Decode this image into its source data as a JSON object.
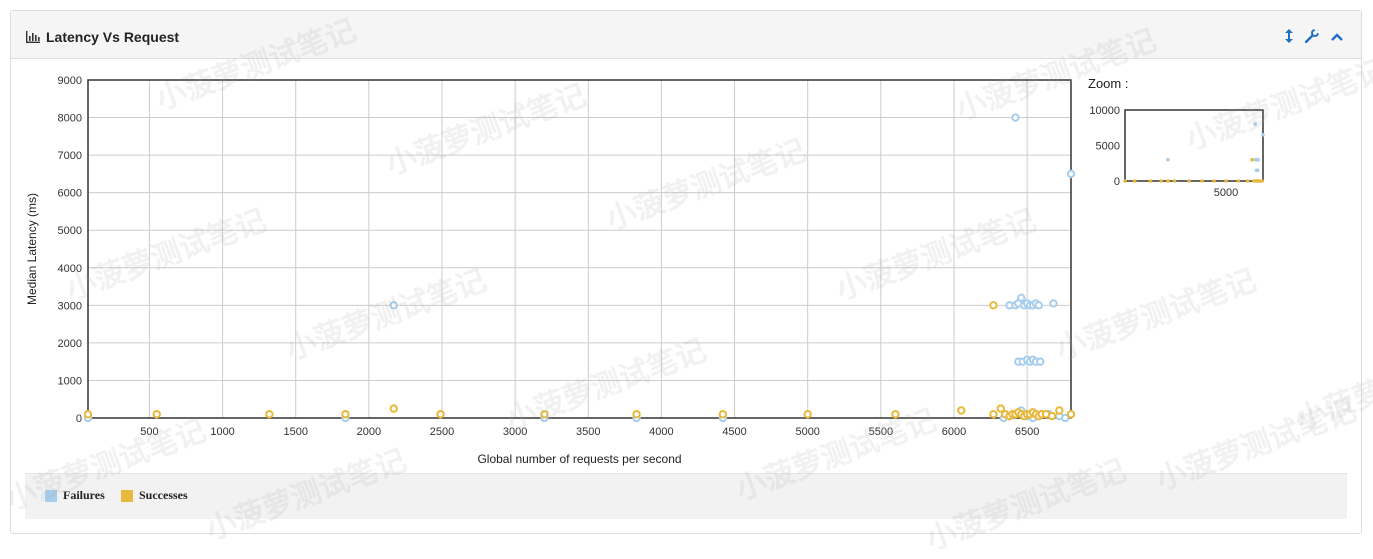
{
  "panel": {
    "title": "Latency Vs Request",
    "tools": {
      "expand_icon": "expand-vertical-icon",
      "settings_icon": "wrench-icon",
      "collapse_icon": "chevron-up-icon"
    }
  },
  "zoom": {
    "label": "Zoom :"
  },
  "legend": [
    {
      "name": "Failures",
      "color": "#a6cdec"
    },
    {
      "name": "Successes",
      "color": "#e8b83a"
    }
  ],
  "watermark": "小菠萝测试笔记",
  "colors": {
    "failures": "#a6cdec",
    "successes": "#e8b83a",
    "grid": "#cccccc",
    "axis": "#333333"
  },
  "chart_data": [
    {
      "type": "scatter",
      "title": "",
      "xlabel": "Global number of requests per second",
      "ylabel": "Median Latency (ms)",
      "xlim": [
        80,
        6800
      ],
      "ylim": [
        0,
        9000
      ],
      "xticks": [
        500,
        1000,
        1500,
        2000,
        2500,
        3000,
        3500,
        4000,
        4500,
        5000,
        5500,
        6000,
        6500
      ],
      "yticks": [
        0,
        1000,
        2000,
        3000,
        4000,
        5000,
        6000,
        7000,
        8000,
        9000
      ],
      "grid": true,
      "legend_position": "bottom-left",
      "series": [
        {
          "name": "Failures",
          "points": [
            [
              80,
              0
            ],
            [
              2170,
              3000
            ],
            [
              1840,
              0
            ],
            [
              3200,
              0
            ],
            [
              3830,
              0
            ],
            [
              4420,
              0
            ],
            [
              6420,
              8000
            ],
            [
              6800,
              6500
            ],
            [
              6380,
              3000
            ],
            [
              6420,
              3000
            ],
            [
              6440,
              3050
            ],
            [
              6460,
              3200
            ],
            [
              6480,
              3000
            ],
            [
              6500,
              3050
            ],
            [
              6520,
              3000
            ],
            [
              6540,
              3000
            ],
            [
              6560,
              3050
            ],
            [
              6580,
              3000
            ],
            [
              6680,
              3050
            ],
            [
              6440,
              1500
            ],
            [
              6470,
              1500
            ],
            [
              6500,
              1550
            ],
            [
              6520,
              1500
            ],
            [
              6540,
              1550
            ],
            [
              6560,
              1500
            ],
            [
              6590,
              1500
            ],
            [
              6340,
              0
            ],
            [
              6380,
              50
            ],
            [
              6420,
              100
            ],
            [
              6460,
              200
            ],
            [
              6500,
              50
            ],
            [
              6540,
              0
            ],
            [
              6580,
              50
            ],
            [
              6650,
              100
            ],
            [
              6720,
              50
            ],
            [
              6760,
              0
            ]
          ]
        },
        {
          "name": "Successes",
          "points": [
            [
              80,
              100
            ],
            [
              550,
              100
            ],
            [
              1320,
              100
            ],
            [
              1840,
              100
            ],
            [
              2170,
              250
            ],
            [
              2490,
              100
            ],
            [
              3200,
              100
            ],
            [
              3830,
              100
            ],
            [
              4420,
              100
            ],
            [
              5000,
              100
            ],
            [
              5600,
              100
            ],
            [
              6050,
              200
            ],
            [
              6270,
              100
            ],
            [
              6270,
              3000
            ],
            [
              6320,
              250
            ],
            [
              6350,
              100
            ],
            [
              6380,
              50
            ],
            [
              6400,
              100
            ],
            [
              6420,
              100
            ],
            [
              6440,
              150
            ],
            [
              6460,
              100
            ],
            [
              6480,
              50
            ],
            [
              6500,
              100
            ],
            [
              6520,
              100
            ],
            [
              6540,
              150
            ],
            [
              6560,
              100
            ],
            [
              6580,
              50
            ],
            [
              6600,
              100
            ],
            [
              6630,
              100
            ],
            [
              6670,
              50
            ],
            [
              6720,
              200
            ],
            [
              6800,
              100
            ]
          ]
        }
      ]
    },
    {
      "type": "scatter",
      "title": "Zoom :",
      "xlim": [
        80,
        6800
      ],
      "ylim": [
        0,
        10000
      ],
      "xticks": [
        5000
      ],
      "yticks": [
        0,
        5000,
        10000
      ],
      "grid": false,
      "series": [
        {
          "name": "Failures",
          "points": [
            [
              2170,
              3000
            ],
            [
              6420,
              8000
            ],
            [
              6800,
              6500
            ],
            [
              6440,
              3000
            ],
            [
              6500,
              3000
            ],
            [
              6560,
              3000
            ],
            [
              6480,
              1500
            ],
            [
              6540,
              1500
            ],
            [
              6500,
              0
            ],
            [
              6600,
              0
            ]
          ]
        },
        {
          "name": "Successes",
          "points": [
            [
              80,
              0
            ],
            [
              550,
              0
            ],
            [
              1320,
              0
            ],
            [
              1840,
              0
            ],
            [
              2170,
              0
            ],
            [
              2490,
              0
            ],
            [
              3200,
              0
            ],
            [
              3830,
              0
            ],
            [
              4420,
              0
            ],
            [
              5000,
              0
            ],
            [
              5600,
              0
            ],
            [
              6050,
              0
            ],
            [
              6270,
              3000
            ],
            [
              6350,
              0
            ],
            [
              6450,
              0
            ],
            [
              6550,
              0
            ],
            [
              6650,
              0
            ],
            [
              6750,
              0
            ]
          ]
        }
      ]
    }
  ]
}
